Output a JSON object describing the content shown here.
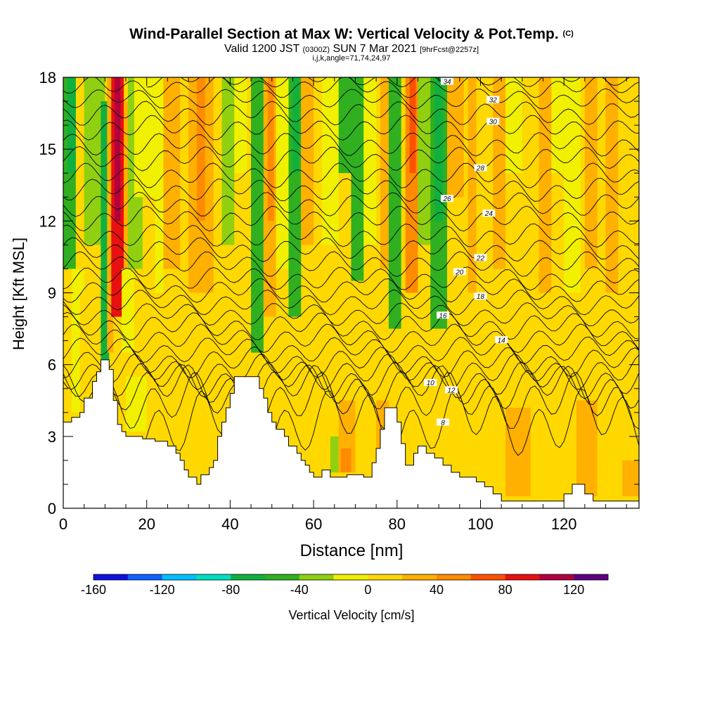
{
  "header": {
    "title_main": "Wind-Parallel Section at Max W: Vertical Velocity & Pot.Temp.",
    "title_mark": "(C)",
    "valid_a": "Valid 1200 JST",
    "valid_b": "(0300Z)",
    "valid_c": "SUN 7 Mar 2021",
    "valid_d": "[9hrFcst@2257z]",
    "indices": "i,j,k,angle=71,74,24,97"
  },
  "chart_data": {
    "type": "heatmap",
    "xlabel": "Distance [nm]",
    "ylabel": "Height [Kft MSL]",
    "xlim": [
      0,
      138
    ],
    "ylim": [
      0,
      18
    ],
    "x_ticks": [
      0,
      20,
      40,
      60,
      80,
      100,
      120
    ],
    "y_ticks": [
      0,
      3,
      6,
      9,
      12,
      15,
      18
    ],
    "colorbar": {
      "label": "Vertical Velocity [cm/s]",
      "range": [
        -160,
        140
      ],
      "step": 20,
      "tick_labels": [
        -160,
        -120,
        -80,
        -40,
        0,
        40,
        80,
        120
      ],
      "colors": [
        "#1010e0",
        "#1060ff",
        "#00c0ff",
        "#00e0c0",
        "#10b040",
        "#30b020",
        "#90d010",
        "#f0f000",
        "#ffd800",
        "#ffb000",
        "#ff8c00",
        "#ff5000",
        "#e81010",
        "#b00040",
        "#600080"
      ]
    },
    "background_fill": "#ffd800",
    "cells": [
      {
        "x1": 0,
        "x2": 3,
        "y1": 10,
        "y2": 18,
        "w": -60
      },
      {
        "x1": 1,
        "x2": 3,
        "y1": 14,
        "y2": 18,
        "w": -80
      },
      {
        "x1": 2,
        "x2": 5,
        "y1": 4,
        "y2": 10,
        "w": -20
      },
      {
        "x1": 5,
        "x2": 10,
        "y1": 11,
        "y2": 18,
        "w": -30
      },
      {
        "x1": 9,
        "x2": 11,
        "y1": 6.2,
        "y2": 17,
        "w": -80
      },
      {
        "x1": 10.5,
        "x2": 12,
        "y1": 6.5,
        "y2": 18,
        "w": 30
      },
      {
        "x1": 11.5,
        "x2": 14.5,
        "y1": 8,
        "y2": 18,
        "w": 80
      },
      {
        "x1": 12.3,
        "x2": 13.7,
        "y1": 12,
        "y2": 18,
        "w": 100
      },
      {
        "x1": 14.5,
        "x2": 15.5,
        "y1": 8,
        "y2": 17,
        "w": 20
      },
      {
        "x1": 15.5,
        "x2": 19,
        "y1": 10,
        "y2": 18,
        "w": -40
      },
      {
        "x1": 14,
        "x2": 17,
        "y1": 6.5,
        "y2": 10,
        "w": -20
      },
      {
        "x1": 17,
        "x2": 22,
        "y1": 13,
        "y2": 18,
        "w": -20
      },
      {
        "x1": 15,
        "x2": 20,
        "y1": 3.2,
        "y2": 5.5,
        "w": -10
      },
      {
        "x1": 22,
        "x2": 24,
        "y1": 8,
        "y2": 18,
        "w": -20
      },
      {
        "x1": 24,
        "x2": 28,
        "y1": 10,
        "y2": 18,
        "w": 20
      },
      {
        "x1": 30,
        "x2": 36,
        "y1": 9,
        "y2": 18,
        "w": 20
      },
      {
        "x1": 32,
        "x2": 34,
        "y1": 12,
        "y2": 18,
        "w": 40
      },
      {
        "x1": 38,
        "x2": 41,
        "y1": 11,
        "y2": 18,
        "w": -40
      },
      {
        "x1": 41,
        "x2": 44,
        "y1": 14,
        "y2": 18,
        "w": -20
      },
      {
        "x1": 45,
        "x2": 48,
        "y1": 6.5,
        "y2": 18,
        "w": -50
      },
      {
        "x1": 48,
        "x2": 51,
        "y1": 8,
        "y2": 18,
        "w": 20
      },
      {
        "x1": 49,
        "x2": 50.5,
        "y1": 12,
        "y2": 18,
        "w": 40
      },
      {
        "x1": 51,
        "x2": 55,
        "y1": 10,
        "y2": 18,
        "w": -20
      },
      {
        "x1": 54,
        "x2": 57,
        "y1": 8,
        "y2": 18,
        "w": -50
      },
      {
        "x1": 55,
        "x2": 56.5,
        "y1": 14,
        "y2": 18,
        "w": -70
      },
      {
        "x1": 57,
        "x2": 60,
        "y1": 11,
        "y2": 18,
        "w": 20
      },
      {
        "x1": 62,
        "x2": 66,
        "y1": 11,
        "y2": 18,
        "w": -20
      },
      {
        "x1": 66,
        "x2": 69,
        "y1": 14,
        "y2": 18,
        "w": -60
      },
      {
        "x1": 69,
        "x2": 72,
        "y1": 9.5,
        "y2": 18,
        "w": -50
      },
      {
        "x1": 72,
        "x2": 75,
        "y1": 11,
        "y2": 18,
        "w": -20
      },
      {
        "x1": 76,
        "x2": 78,
        "y1": 10,
        "y2": 18,
        "w": 20
      },
      {
        "x1": 78,
        "x2": 81,
        "y1": 7.5,
        "y2": 18,
        "w": -50
      },
      {
        "x1": 78.5,
        "x2": 80.5,
        "y1": 13,
        "y2": 18,
        "w": -60
      },
      {
        "x1": 82,
        "x2": 85,
        "y1": 9,
        "y2": 18,
        "w": 40
      },
      {
        "x1": 83,
        "x2": 84.5,
        "y1": 14,
        "y2": 18,
        "w": 60
      },
      {
        "x1": 85,
        "x2": 89,
        "y1": 11,
        "y2": 18,
        "w": -40
      },
      {
        "x1": 88,
        "x2": 92,
        "y1": 7.5,
        "y2": 18,
        "w": -60
      },
      {
        "x1": 89,
        "x2": 91,
        "y1": 12,
        "y2": 18,
        "w": -80
      },
      {
        "x1": 92,
        "x2": 96,
        "y1": 13,
        "y2": 18,
        "w": 20
      },
      {
        "x1": 97,
        "x2": 99,
        "y1": 9,
        "y2": 18,
        "w": 20
      },
      {
        "x1": 103,
        "x2": 106,
        "y1": 10,
        "y2": 18,
        "w": 20
      },
      {
        "x1": 106,
        "x2": 110,
        "y1": 14,
        "y2": 18,
        "w": -20
      },
      {
        "x1": 114,
        "x2": 117,
        "y1": 9,
        "y2": 18,
        "w": 20
      },
      {
        "x1": 117,
        "x2": 120,
        "y1": 14,
        "y2": 18,
        "w": -20
      },
      {
        "x1": 120,
        "x2": 124,
        "y1": 9,
        "y2": 18,
        "w": -20
      },
      {
        "x1": 125,
        "x2": 128,
        "y1": 10,
        "y2": 18,
        "w": 20
      },
      {
        "x1": 130,
        "x2": 133,
        "y1": 9,
        "y2": 18,
        "w": 20
      },
      {
        "x1": 134,
        "x2": 138,
        "y1": 6,
        "y2": 18,
        "w": 0
      },
      {
        "x1": 4,
        "x2": 8,
        "y1": 3.5,
        "y2": 9,
        "w": 0
      },
      {
        "x1": 20,
        "x2": 30,
        "y1": 2,
        "y2": 6,
        "w": 0
      },
      {
        "x1": 22,
        "x2": 34,
        "y1": 6,
        "y2": 9,
        "w": 0
      },
      {
        "x1": 60,
        "x2": 64,
        "y1": 1.5,
        "y2": 4.5,
        "w": 0
      },
      {
        "x1": 64,
        "x2": 66,
        "y1": 1.5,
        "y2": 3,
        "w": -40
      },
      {
        "x1": 66,
        "x2": 70,
        "y1": 1.5,
        "y2": 4.5,
        "w": 20
      },
      {
        "x1": 66.5,
        "x2": 69,
        "y1": 1.5,
        "y2": 2.5,
        "w": 40
      },
      {
        "x1": 70,
        "x2": 75,
        "y1": 1.5,
        "y2": 4.5,
        "w": 0
      },
      {
        "x1": 75,
        "x2": 78,
        "y1": 2,
        "y2": 4.5,
        "w": 20
      },
      {
        "x1": 84,
        "x2": 92,
        "y1": 2,
        "y2": 4,
        "w": 0
      },
      {
        "x1": 98,
        "x2": 106,
        "y1": 0.5,
        "y2": 3.8,
        "w": 0
      },
      {
        "x1": 106,
        "x2": 112,
        "y1": 0.5,
        "y2": 4.2,
        "w": 20
      },
      {
        "x1": 113,
        "x2": 122,
        "y1": 0.5,
        "y2": 4.5,
        "w": 0
      },
      {
        "x1": 123,
        "x2": 128,
        "y1": 0.5,
        "y2": 4.5,
        "w": 20
      },
      {
        "x1": 128,
        "x2": 134,
        "y1": 0.5,
        "y2": 3.5,
        "w": 0
      },
      {
        "x1": 134,
        "x2": 138,
        "y1": 0.5,
        "y2": 2,
        "w": 20
      }
    ],
    "terrain": [
      [
        0,
        3.6
      ],
      [
        2,
        3.6
      ],
      [
        2,
        3.8
      ],
      [
        4,
        3.8
      ],
      [
        4,
        4
      ],
      [
        5,
        4
      ],
      [
        5,
        4.6
      ],
      [
        7,
        4.6
      ],
      [
        7,
        5.3
      ],
      [
        8,
        5.3
      ],
      [
        8,
        5.7
      ],
      [
        9,
        5.7
      ],
      [
        9,
        6.2
      ],
      [
        11,
        6.2
      ],
      [
        11,
        5.8
      ],
      [
        12,
        5.8
      ],
      [
        12,
        4.5
      ],
      [
        13,
        4.5
      ],
      [
        13,
        3.5
      ],
      [
        14,
        3.5
      ],
      [
        14,
        3.2
      ],
      [
        15,
        3.2
      ],
      [
        15,
        3
      ],
      [
        19,
        3
      ],
      [
        19,
        2.9
      ],
      [
        22,
        2.9
      ],
      [
        22,
        2.8
      ],
      [
        25,
        2.8
      ],
      [
        25,
        2.6
      ],
      [
        27,
        2.6
      ],
      [
        27,
        2.3
      ],
      [
        28,
        2.3
      ],
      [
        28,
        2
      ],
      [
        29,
        2
      ],
      [
        29,
        1.6
      ],
      [
        30,
        1.6
      ],
      [
        30,
        1.3
      ],
      [
        32,
        1.3
      ],
      [
        32,
        1
      ],
      [
        33,
        1
      ],
      [
        33,
        1.4
      ],
      [
        35,
        1.4
      ],
      [
        35,
        1.7
      ],
      [
        36,
        1.7
      ],
      [
        36,
        2
      ],
      [
        37,
        2
      ],
      [
        37,
        3
      ],
      [
        38,
        3
      ],
      [
        38,
        3.6
      ],
      [
        39,
        3.6
      ],
      [
        39,
        4.2
      ],
      [
        40,
        4.2
      ],
      [
        40,
        4.8
      ],
      [
        41,
        4.8
      ],
      [
        41,
        5.5
      ],
      [
        47,
        5.5
      ],
      [
        47,
        5
      ],
      [
        48,
        5
      ],
      [
        48,
        4.6
      ],
      [
        49,
        4.6
      ],
      [
        49,
        4
      ],
      [
        50,
        4
      ],
      [
        50,
        3.6
      ],
      [
        51,
        3.6
      ],
      [
        51,
        3.3
      ],
      [
        53,
        3.3
      ],
      [
        53,
        3
      ],
      [
        54,
        3
      ],
      [
        54,
        2.6
      ],
      [
        56,
        2.6
      ],
      [
        56,
        2.3
      ],
      [
        57,
        2.3
      ],
      [
        57,
        2
      ],
      [
        58,
        2
      ],
      [
        58,
        1.8
      ],
      [
        59,
        1.8
      ],
      [
        59,
        1.5
      ],
      [
        60,
        1.5
      ],
      [
        60,
        1.3
      ],
      [
        62,
        1.3
      ],
      [
        62,
        1.6
      ],
      [
        64,
        1.6
      ],
      [
        64,
        1.3
      ],
      [
        68,
        1.3
      ],
      [
        68,
        1.4
      ],
      [
        72,
        1.4
      ],
      [
        72,
        1.3
      ],
      [
        74,
        1.3
      ],
      [
        74,
        1.9
      ],
      [
        75,
        1.9
      ],
      [
        75,
        2.5
      ],
      [
        76,
        2.5
      ],
      [
        76,
        3.3
      ],
      [
        77,
        3.3
      ],
      [
        77,
        4.2
      ],
      [
        80,
        4.2
      ],
      [
        80,
        3.6
      ],
      [
        81,
        3.6
      ],
      [
        81,
        2.7
      ],
      [
        82,
        2.7
      ],
      [
        82,
        1.8
      ],
      [
        84,
        1.8
      ],
      [
        84,
        2.3
      ],
      [
        85,
        2.3
      ],
      [
        85,
        2.6
      ],
      [
        87,
        2.6
      ],
      [
        87,
        2.3
      ],
      [
        89,
        2.3
      ],
      [
        89,
        2.1
      ],
      [
        91,
        2.1
      ],
      [
        91,
        1.8
      ],
      [
        93,
        1.8
      ],
      [
        93,
        1.5
      ],
      [
        95,
        1.5
      ],
      [
        95,
        1.3
      ],
      [
        99,
        1.3
      ],
      [
        99,
        1.1
      ],
      [
        101,
        1.1
      ],
      [
        101,
        0.9
      ],
      [
        103,
        0.9
      ],
      [
        103,
        0.6
      ],
      [
        105,
        0.6
      ],
      [
        105,
        0.3
      ],
      [
        120,
        0.3
      ],
      [
        120,
        0.6
      ],
      [
        122,
        0.6
      ],
      [
        122,
        1
      ],
      [
        125,
        1
      ],
      [
        125,
        0.6
      ],
      [
        127,
        0.6
      ],
      [
        127,
        0.3
      ],
      [
        138,
        0.3
      ]
    ],
    "isentropes": [
      {
        "value": 8,
        "y": 3.6,
        "d": 1.0,
        "start": 18,
        "shown": true,
        "label_x": 91
      },
      {
        "value": 9,
        "y": 4.5,
        "d": 0.8,
        "start": 8,
        "shown": false,
        "label_x": 0
      },
      {
        "value": 10,
        "y": 5.05,
        "d": 0.65,
        "start": 0,
        "shown": true,
        "label_x": 88
      },
      {
        "value": 11,
        "y": 5.35,
        "d": 0.55,
        "start": 0,
        "shown": false,
        "label_x": 0
      },
      {
        "value": 12,
        "y": 5.7,
        "d": 0.5,
        "start": 0,
        "shown": true,
        "label_x": 93
      },
      {
        "value": 13,
        "y": 6.1,
        "d": 0.45,
        "start": 0,
        "shown": false,
        "label_x": 0
      },
      {
        "value": 14,
        "y": 6.6,
        "d": 0.4,
        "start": 0,
        "shown": true,
        "label_x": 105
      },
      {
        "value": 15,
        "y": 7.1,
        "d": 0.4,
        "start": 0,
        "shown": false,
        "label_x": 0
      },
      {
        "value": 16,
        "y": 7.6,
        "d": 0.4,
        "start": 0,
        "shown": true,
        "label_x": 91
      },
      {
        "value": 17,
        "y": 8.1,
        "d": 0.35,
        "start": 0,
        "shown": false,
        "label_x": 0
      },
      {
        "value": 18,
        "y": 8.6,
        "d": 0.35,
        "start": 0,
        "shown": true,
        "label_x": 100
      },
      {
        "value": 19,
        "y": 9.1,
        "d": 0.35,
        "start": 0,
        "shown": false,
        "label_x": 0
      },
      {
        "value": 20,
        "y": 9.6,
        "d": 0.35,
        "start": 0,
        "shown": true,
        "label_x": 95
      },
      {
        "value": 21,
        "y": 10.2,
        "d": 0.35,
        "start": 0,
        "shown": false,
        "label_x": 0
      },
      {
        "value": 22,
        "y": 10.8,
        "d": 0.35,
        "start": 0,
        "shown": true,
        "label_x": 100
      },
      {
        "value": 23,
        "y": 11.4,
        "d": 0.35,
        "start": 0,
        "shown": false,
        "label_x": 0
      },
      {
        "value": 24,
        "y": 12.1,
        "d": 0.35,
        "start": 0,
        "shown": true,
        "label_x": 102
      },
      {
        "value": 25,
        "y": 12.7,
        "d": 0.35,
        "start": 0,
        "shown": false,
        "label_x": 0
      },
      {
        "value": 26,
        "y": 13.3,
        "d": 0.35,
        "start": 0,
        "shown": true,
        "label_x": 92
      },
      {
        "value": 27,
        "y": 13.9,
        "d": 0.35,
        "start": 0,
        "shown": false,
        "label_x": 0
      },
      {
        "value": 28,
        "y": 14.6,
        "d": 0.35,
        "start": 0,
        "shown": true,
        "label_x": 100
      },
      {
        "value": 29,
        "y": 15.2,
        "d": 0.35,
        "start": 0,
        "shown": false,
        "label_x": 0
      },
      {
        "value": 30,
        "y": 15.9,
        "d": 0.35,
        "start": 0,
        "shown": true,
        "label_x": 103
      },
      {
        "value": 31,
        "y": 16.5,
        "d": 0.35,
        "start": 0,
        "shown": false,
        "label_x": 0
      },
      {
        "value": 32,
        "y": 17.1,
        "d": 0.3,
        "start": 0,
        "shown": true,
        "label_x": 103
      },
      {
        "value": 33,
        "y": 17.6,
        "d": 0.3,
        "start": 0,
        "shown": false,
        "label_x": 0
      },
      {
        "value": 34,
        "y": 17.95,
        "d": 0.25,
        "start": 20,
        "shown": true,
        "label_x": 92
      }
    ]
  }
}
